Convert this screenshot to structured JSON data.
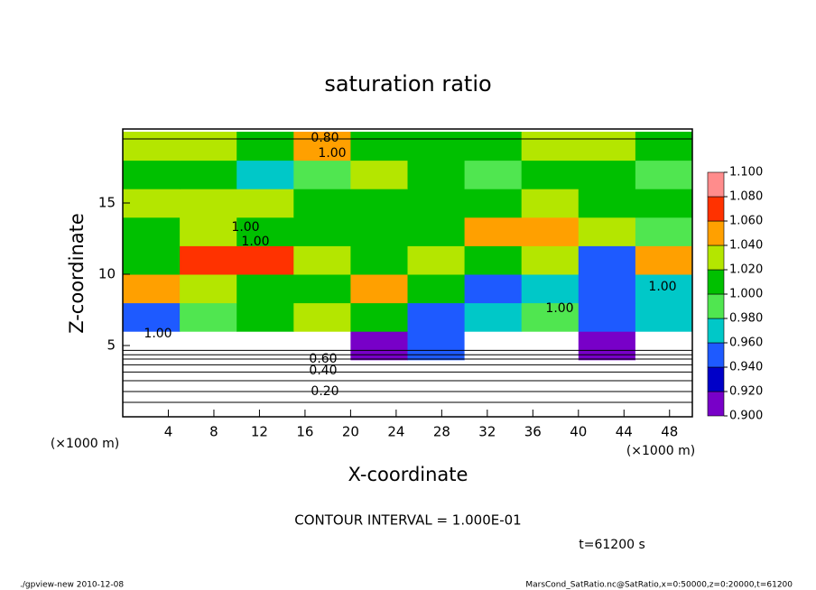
{
  "chart_data": {
    "type": "heatmap",
    "title": "saturation ratio",
    "xlabel": "X-coordinate",
    "ylabel": "Z-coordinate",
    "x_unit": "(×1000 m)",
    "y_unit": "(×1000 m)",
    "xlim": [
      0,
      50
    ],
    "ylim": [
      0,
      20
    ],
    "xticks": [
      4,
      8,
      12,
      16,
      20,
      24,
      28,
      32,
      36,
      40,
      44,
      48
    ],
    "yticks": [
      5,
      10,
      15
    ],
    "x": [
      2.5,
      7.5,
      12.5,
      17.5,
      22.5,
      27.5,
      32.5,
      37.5,
      42.5,
      47.5
    ],
    "y": [
      1,
      3,
      5,
      7,
      9,
      11,
      13,
      15,
      17,
      19
    ],
    "z": [
      [
        0.1,
        0.1,
        0.1,
        0.1,
        0.1,
        0.1,
        0.1,
        0.1,
        0.1,
        0.1
      ],
      [
        0.4,
        0.4,
        0.4,
        0.4,
        0.4,
        0.4,
        0.4,
        0.4,
        0.4,
        0.4
      ],
      [
        0.85,
        0.8,
        0.85,
        0.85,
        0.9,
        0.95,
        0.85,
        0.8,
        0.9,
        0.85
      ],
      [
        0.95,
        0.98,
        1.01,
        1.03,
        1.0,
        0.94,
        0.96,
        0.99,
        0.95,
        0.97
      ],
      [
        1.05,
        1.03,
        1.01,
        1.0,
        1.04,
        1.0,
        0.95,
        0.97,
        0.94,
        0.96
      ],
      [
        1.01,
        1.06,
        1.07,
        1.03,
        1.01,
        1.02,
        1.0,
        1.03,
        0.95,
        1.05
      ],
      [
        1.01,
        1.02,
        1.0,
        1.01,
        1.0,
        1.01,
        1.05,
        1.04,
        1.03,
        0.99
      ],
      [
        1.02,
        1.03,
        1.02,
        1.0,
        1.0,
        1.01,
        1.01,
        1.02,
        1.01,
        1.01
      ],
      [
        1.01,
        1.0,
        0.97,
        0.99,
        1.03,
        1.01,
        0.99,
        1.0,
        1.01,
        0.99
      ],
      [
        1.02,
        1.02,
        1.01,
        1.05,
        1.01,
        1.0,
        1.01,
        1.03,
        1.02,
        1.0
      ]
    ],
    "colorbar": {
      "levels": [
        {
          "value": 0.9,
          "label": "0.900"
        },
        {
          "value": 0.92,
          "label": "0.920"
        },
        {
          "value": 0.94,
          "label": "0.940"
        },
        {
          "value": 0.96,
          "label": "0.960"
        },
        {
          "value": 0.98,
          "label": "0.980"
        },
        {
          "value": 1.0,
          "label": "1.000"
        },
        {
          "value": 1.02,
          "label": "1.020"
        },
        {
          "value": 1.04,
          "label": "1.040"
        },
        {
          "value": 1.06,
          "label": "1.060"
        },
        {
          "value": 1.08,
          "label": "1.080"
        },
        {
          "value": 1.1,
          "label": "1.100"
        }
      ],
      "colors": [
        "#7800c8",
        "#0000c8",
        "#1e5aff",
        "#00c8c8",
        "#50e650",
        "#00c000",
        "#b4e600",
        "#ffa000",
        "#ff3200",
        "#ff8c8c"
      ]
    },
    "contour_labels": [
      "1.00",
      "1.00",
      "1.00",
      "1.00",
      "1.00",
      "1.00",
      "0.80",
      "0.60",
      "0.40",
      "0.20"
    ],
    "contour_interval": "CONTOUR INTERVAL = 1.000E-01",
    "time": "t=61200 s",
    "footer_left": "./gpview-new  2010-12-08",
    "footer_right": "MarsCond_SatRatio.nc@SatRatio,x=0:50000,z=0:20000,t=61200"
  }
}
